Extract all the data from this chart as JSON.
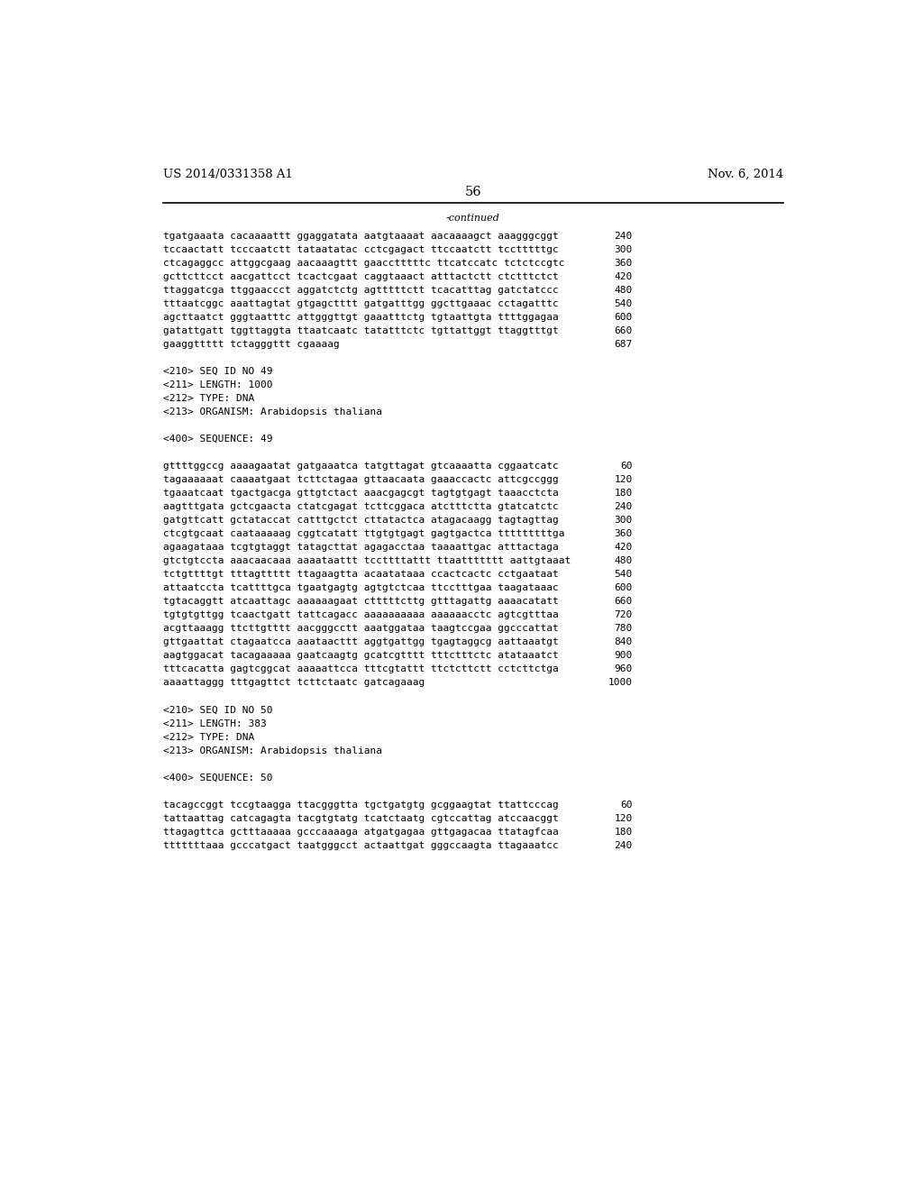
{
  "left_header": "US 2014/0331358 A1",
  "right_header": "Nov. 6, 2014",
  "page_number": "56",
  "continued_label": "-continued",
  "background_color": "#ffffff",
  "text_color": "#000000",
  "font_size_header": 9.5,
  "font_size_body": 8.0,
  "font_size_page": 10.5,
  "lines": [
    {
      "text": "tgatgaaata cacaaaattt ggaggatata aatgtaaaat aacaaaagct aaagggcggt",
      "num": "240"
    },
    {
      "text": "tccaactatt tcccaatctt tataatatac cctcgagact ttccaatctt tcctttttgc",
      "num": "300"
    },
    {
      "text": "ctcagaggcc attggcgaag aacaaagttt gaacctttttc ttcatccatc tctctccgtc",
      "num": "360"
    },
    {
      "text": "gcttcttcct aacgattcct tcactcgaat caggtaaact atttactctt ctctttctct",
      "num": "420"
    },
    {
      "text": "ttaggatcga ttggaaccct aggatctctg agtttttctt tcacatttag gatctatccc",
      "num": "480"
    },
    {
      "text": "tttaatcggc aaattagtat gtgagctttt gatgatttgg ggcttgaaac cctagatttc",
      "num": "540"
    },
    {
      "text": "agcttaatct gggtaatttc attgggttgt gaaatttctg tgtaattgta ttttggagaa",
      "num": "600"
    },
    {
      "text": "gatattgatt tggttaggta ttaatcaatc tatatttctc tgttattggt ttaggtttgt",
      "num": "660"
    },
    {
      "text": "gaaggttttt tctagggttt cgaaaag",
      "num": "687"
    },
    {
      "text": "",
      "num": ""
    },
    {
      "text": "<210> SEQ ID NO 49",
      "num": ""
    },
    {
      "text": "<211> LENGTH: 1000",
      "num": ""
    },
    {
      "text": "<212> TYPE: DNA",
      "num": ""
    },
    {
      "text": "<213> ORGANISM: Arabidopsis thaliana",
      "num": ""
    },
    {
      "text": "",
      "num": ""
    },
    {
      "text": "<400> SEQUENCE: 49",
      "num": ""
    },
    {
      "text": "",
      "num": ""
    },
    {
      "text": "gttttggccg aaaagaatat gatgaaatca tatgttagat gtcaaaatta cggaatcatc",
      "num": "60"
    },
    {
      "text": "tagaaaaaat caaaatgaat tcttctagaa gttaacaata gaaaccactc attcgccggg",
      "num": "120"
    },
    {
      "text": "tgaaatcaat tgactgacga gttgtctact aaacgagcgt tagtgtgagt taaacctcta",
      "num": "180"
    },
    {
      "text": "aagtttgata gctcgaacta ctatcgagat tcttcggaca atctttctta gtatcatctc",
      "num": "240"
    },
    {
      "text": "gatgttcatt gctataccat catttgctct cttatactca atagacaagg tagtagttag",
      "num": "300"
    },
    {
      "text": "ctcgtgcaat caataaaaag cggtcatatt ttgtgtgagt gagtgactca tttttttttga",
      "num": "360"
    },
    {
      "text": "agaagataaa tcgtgtaggt tatagcttat agagacctaa taaaattgac atttactaga",
      "num": "420"
    },
    {
      "text": "gtctgtccta aaacaacaaa aaaataattt tccttttattt ttaattttttt aattgtaaat",
      "num": "480"
    },
    {
      "text": "tctgttttgt tttagttttt ttagaagtta acaatataaa ccactcactc cctgaataat",
      "num": "540"
    },
    {
      "text": "attaatccta tcattttgca tgaatgagtg agtgtctcaa ttcctttgaa taagataaac",
      "num": "600"
    },
    {
      "text": "tgtacaggtt atcaattagc aaaaaagaat ctttttcttg gtttagattg aaaacatatt",
      "num": "660"
    },
    {
      "text": "tgtgtgttgg tcaactgatt tattcagacc aaaaaaaaaa aaaaaacctc agtcgtttaa",
      "num": "720"
    },
    {
      "text": "acgttaaagg ttcttgtttt aacgggcctt aaatggataa taagtccgaa ggcccattat",
      "num": "780"
    },
    {
      "text": "gttgaattat ctagaatcca aaataacttt aggtgattgg tgagtaggcg aattaaatgt",
      "num": "840"
    },
    {
      "text": "aagtggacat tacagaaaaa gaatcaagtg gcatcgtttt tttctttctc atataaatct",
      "num": "900"
    },
    {
      "text": "tttcacatta gagtcggcat aaaaattcca tttcgtattt ttctcttctt cctcttctga",
      "num": "960"
    },
    {
      "text": "aaaattaggg tttgagttct tcttctaatc gatcagaaag",
      "num": "1000"
    },
    {
      "text": "",
      "num": ""
    },
    {
      "text": "<210> SEQ ID NO 50",
      "num": ""
    },
    {
      "text": "<211> LENGTH: 383",
      "num": ""
    },
    {
      "text": "<212> TYPE: DNA",
      "num": ""
    },
    {
      "text": "<213> ORGANISM: Arabidopsis thaliana",
      "num": ""
    },
    {
      "text": "",
      "num": ""
    },
    {
      "text": "<400> SEQUENCE: 50",
      "num": ""
    },
    {
      "text": "",
      "num": ""
    },
    {
      "text": "tacagccggt tccgtaagga ttacgggtta tgctgatgtg gcggaagtat ttattcccag",
      "num": "60"
    },
    {
      "text": "tattaattag catcagagta tacgtgtatg tcatctaatg cgtccattag atccaacggt",
      "num": "120"
    },
    {
      "text": "ttagagttca gctttaaaaa gcccaaaaga atgatgagaa gttgagacaa ttatagfcaa",
      "num": "180"
    },
    {
      "text": "tttttttaaa gcccatgact taatgggcct actaattgat gggccaagta ttagaaatcc",
      "num": "240"
    }
  ]
}
